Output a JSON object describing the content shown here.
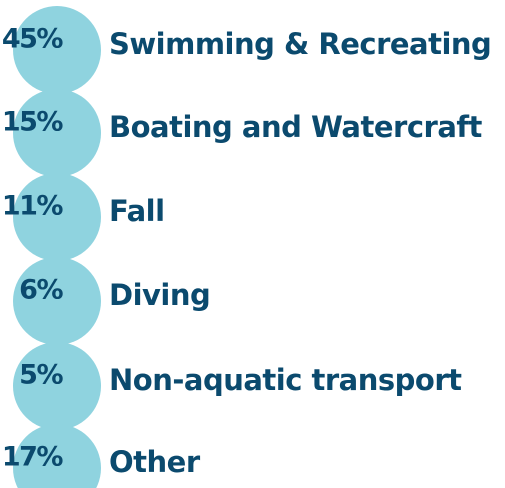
{
  "items": [
    {
      "percent": "45%",
      "label": "Swimming & Recreating"
    },
    {
      "percent": "15%",
      "label": "Boating and Watercraft"
    },
    {
      "percent": "11%",
      "label": "Fall"
    },
    {
      "percent": "6%",
      "label": "Diving"
    },
    {
      "percent": "5%",
      "label": "Non-aquatic transport"
    },
    {
      "percent": "17%",
      "label": "Other"
    }
  ]
}
